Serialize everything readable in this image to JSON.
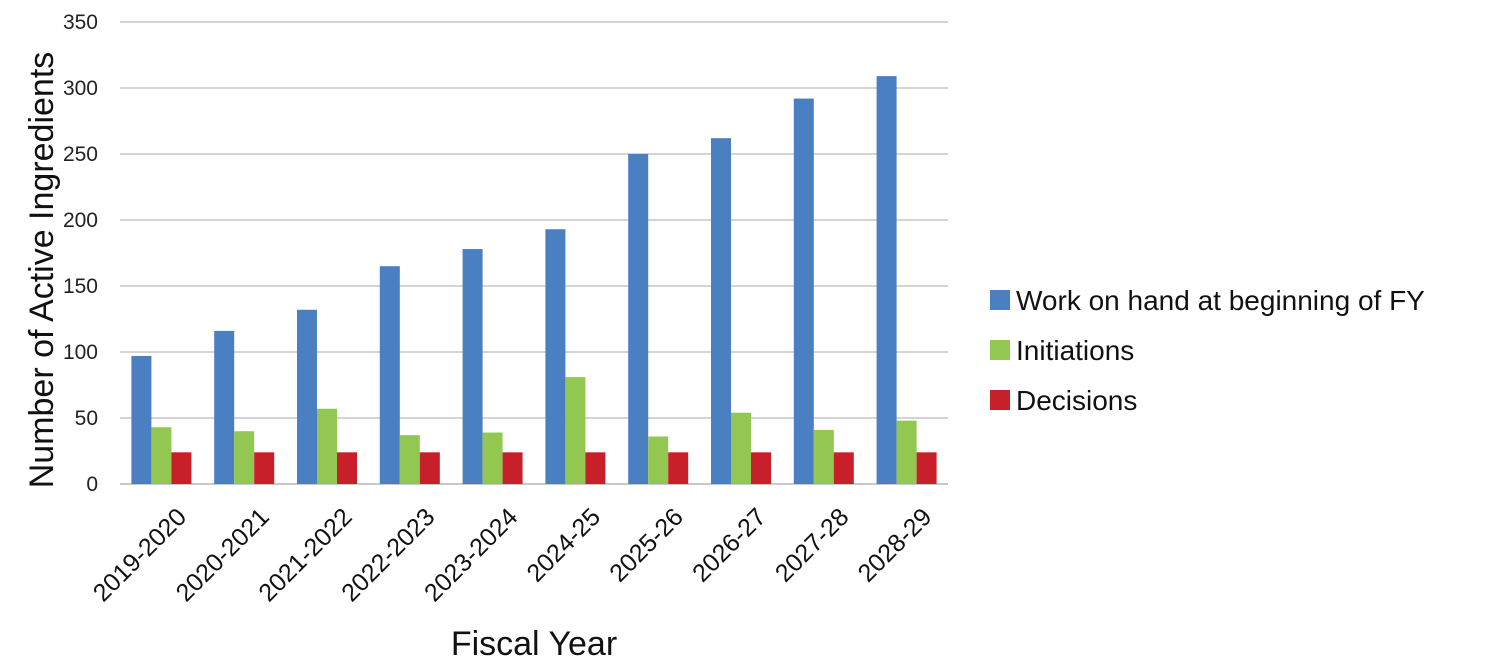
{
  "chart_data": {
    "type": "bar",
    "title": "",
    "xlabel": "Fiscal Year",
    "ylabel": "Number of Active Ingredients",
    "ylim": [
      0,
      350
    ],
    "yticks": [
      0,
      50,
      100,
      150,
      200,
      250,
      300,
      350
    ],
    "grid": true,
    "legend_position": "right",
    "categories": [
      "2019-2020",
      "2020-2021",
      "2021-2022",
      "2022-2023",
      "2023-2024",
      "2024-25",
      "2025-26",
      "2026-27",
      "2027-28",
      "2028-29"
    ],
    "series": [
      {
        "name": "Work on hand at beginning of FY",
        "color": "#4a7fc1",
        "values": [
          97,
          116,
          132,
          165,
          178,
          193,
          250,
          262,
          292,
          309
        ]
      },
      {
        "name": "Initiations",
        "color": "#92c851",
        "values": [
          43,
          40,
          57,
          37,
          39,
          81,
          36,
          54,
          41,
          48
        ]
      },
      {
        "name": "Decisions",
        "color": "#c8202a",
        "values": [
          24,
          24,
          24,
          24,
          24,
          24,
          24,
          24,
          24,
          24
        ]
      }
    ]
  }
}
